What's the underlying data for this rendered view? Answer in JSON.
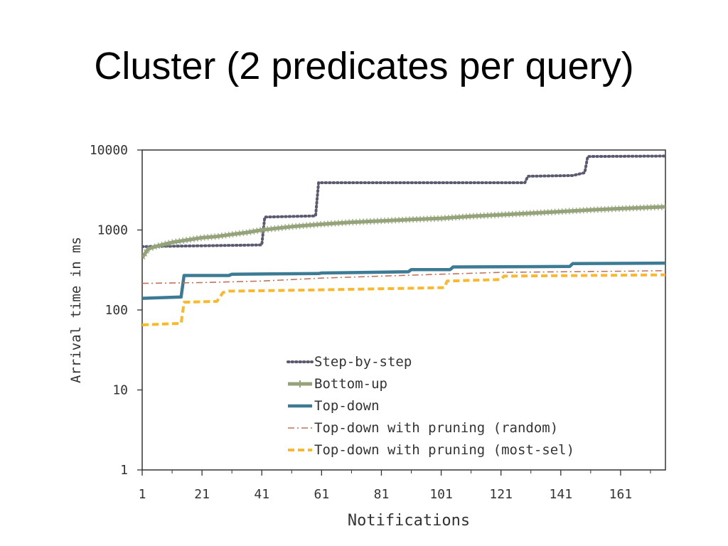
{
  "slide": {
    "title": "Cluster (2 predicates per query)"
  },
  "chart_data": {
    "type": "line",
    "xlabel": "Notifications",
    "ylabel": "Arrival time in ms",
    "x_scale": "linear",
    "y_scale": "log",
    "xlim": [
      1,
      176
    ],
    "ylim": [
      1,
      10000
    ],
    "x_ticks": [
      1,
      21,
      41,
      61,
      81,
      101,
      121,
      141,
      161
    ],
    "y_ticks": [
      1,
      10,
      100,
      1000,
      10000
    ],
    "y_tick_labels": [
      "1",
      "10",
      "100",
      "1000",
      "10000"
    ],
    "grid": false,
    "legend_position": "bottom-center",
    "series": [
      {
        "name": "Step-by-step",
        "color": "#5a5a70",
        "style": "dotted",
        "x": [
          1,
          41,
          42,
          59,
          60,
          129,
          130,
          145,
          149,
          150,
          176
        ],
        "y": [
          620,
          650,
          1450,
          1500,
          3900,
          3900,
          4700,
          4800,
          5200,
          8300,
          8400
        ]
      },
      {
        "name": "Bottom-up",
        "color": "#94a37a",
        "style": "solid-thick-markers",
        "x": [
          1,
          3,
          6,
          11,
          16,
          21,
          26,
          31,
          36,
          41,
          51,
          61,
          71,
          81,
          91,
          101,
          111,
          121,
          131,
          141,
          151,
          161,
          176
        ],
        "y": [
          450,
          580,
          630,
          700,
          750,
          800,
          830,
          880,
          930,
          1000,
          1100,
          1180,
          1250,
          1300,
          1350,
          1400,
          1480,
          1550,
          1620,
          1700,
          1780,
          1850,
          1950
        ]
      },
      {
        "name": "Top-down",
        "color": "#3d7a94",
        "style": "solid-thick",
        "x": [
          1,
          14,
          15,
          30,
          31,
          60,
          61,
          90,
          91,
          104,
          105,
          144,
          145,
          176
        ],
        "y": [
          140,
          145,
          270,
          270,
          280,
          285,
          290,
          300,
          320,
          320,
          345,
          350,
          380,
          385
        ]
      },
      {
        "name": "Top-down with pruning (random)",
        "color": "#c2735a",
        "style": "dash-dot",
        "x": [
          1,
          21,
          41,
          61,
          81,
          101,
          121,
          141,
          161,
          176
        ],
        "y": [
          215,
          220,
          230,
          250,
          265,
          280,
          295,
          300,
          305,
          310
        ]
      },
      {
        "name": "Top-down with pruning (most-sel)",
        "color": "#fbb82a",
        "style": "dashed-thick",
        "x": [
          1,
          14,
          15,
          26,
          28,
          30,
          60,
          102,
          103,
          121,
          122,
          176
        ],
        "y": [
          65,
          68,
          125,
          128,
          165,
          172,
          178,
          190,
          230,
          240,
          265,
          275
        ]
      }
    ]
  }
}
